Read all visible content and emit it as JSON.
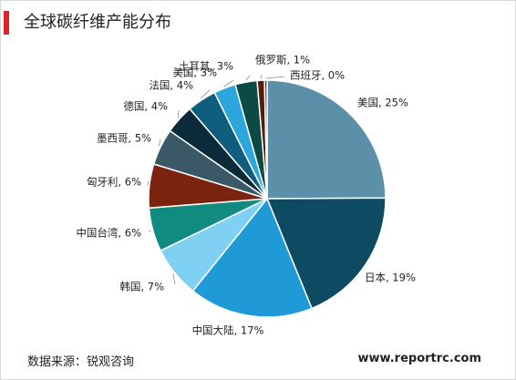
{
  "header": {
    "title": "全球碳纤维产能分布"
  },
  "footer": {
    "source": "数据来源：锐观咨询",
    "url": "www.reportrc.com"
  },
  "chart_data": {
    "type": "pie",
    "title": "全球碳纤维产能分布",
    "slices": [
      {
        "name": "美国",
        "value": 25,
        "label": "美国, 25%",
        "color": "#5b90a8"
      },
      {
        "name": "日本",
        "value": 19,
        "label": "日本, 19%",
        "color": "#0e4b63"
      },
      {
        "name": "中国大陆",
        "value": 17,
        "label": "中国大陆, 17%",
        "color": "#1f9ad6"
      },
      {
        "name": "韩国",
        "value": 7,
        "label": "韩国, 7%",
        "color": "#7fd0f2"
      },
      {
        "name": "中国台湾",
        "value": 6,
        "label": "中国台湾, 6%",
        "color": "#118b7f"
      },
      {
        "name": "匈牙利",
        "value": 6,
        "label": "匈牙利, 6%",
        "color": "#7a2410"
      },
      {
        "name": "墨西哥",
        "value": 5,
        "label": "墨西哥, 5%",
        "color": "#3a5866"
      },
      {
        "name": "德国",
        "value": 4,
        "label": "德国, 4%",
        "color": "#0b2a3a"
      },
      {
        "name": "法国",
        "value": 4,
        "label": "法国, 4%",
        "color": "#0f5e7e"
      },
      {
        "name": "美国",
        "value": 3,
        "label": "美国, 3%",
        "color": "#2da6de"
      },
      {
        "name": "土耳其",
        "value": 3,
        "label": "土耳其, 3%",
        "color": "#0c4a44"
      },
      {
        "name": "俄罗斯",
        "value": 1,
        "label": "俄罗斯, 1%",
        "color": "#5a1a0c"
      },
      {
        "name": "西班牙",
        "value": 0,
        "label": "西班牙, 0%",
        "color": "#2f3d44"
      }
    ]
  }
}
